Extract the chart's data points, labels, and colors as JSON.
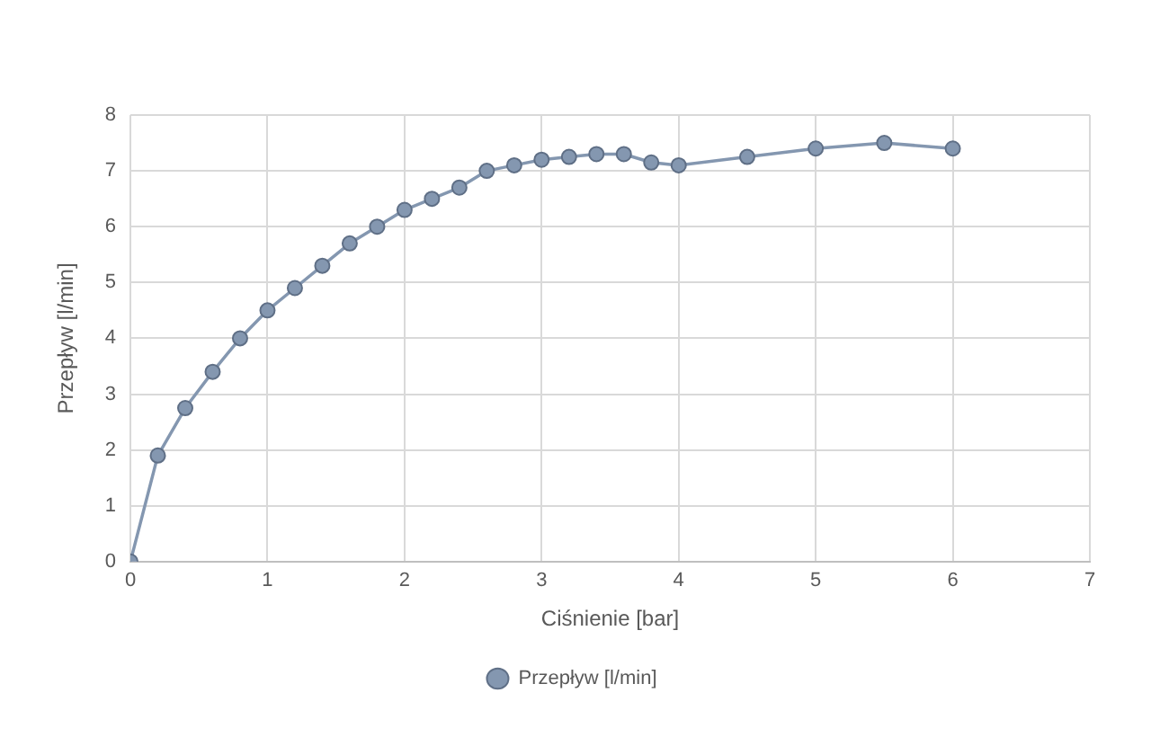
{
  "chart_data": {
    "type": "line",
    "xlabel": "Ciśnienie [bar]",
    "ylabel": "Przepływ [l/min]",
    "x": [
      0,
      0.2,
      0.4,
      0.6,
      0.8,
      1.0,
      1.2,
      1.4,
      1.6,
      1.8,
      2.0,
      2.2,
      2.4,
      2.6,
      2.8,
      3.0,
      3.2,
      3.4,
      3.6,
      3.8,
      4.0,
      4.5,
      5.0,
      5.5,
      6.0
    ],
    "series": [
      {
        "name": "Przepływ [l/min]",
        "color": "#8497b0",
        "values": [
          0,
          1.9,
          2.75,
          3.4,
          4.0,
          4.5,
          4.9,
          5.3,
          5.7,
          6.0,
          6.3,
          6.5,
          6.7,
          7.0,
          7.1,
          7.2,
          7.25,
          7.3,
          7.3,
          7.15,
          7.1,
          7.25,
          7.4,
          7.5,
          7.4
        ]
      }
    ],
    "xlim": [
      0,
      7
    ],
    "xticks": [
      0,
      1,
      2,
      3,
      4,
      5,
      6,
      7
    ],
    "ylim": [
      0,
      8
    ],
    "yticks": [
      0,
      1,
      2,
      3,
      4,
      5,
      6,
      7,
      8
    ],
    "grid": true,
    "legend": "bottom",
    "marker": "circle",
    "line_style": "solid"
  }
}
